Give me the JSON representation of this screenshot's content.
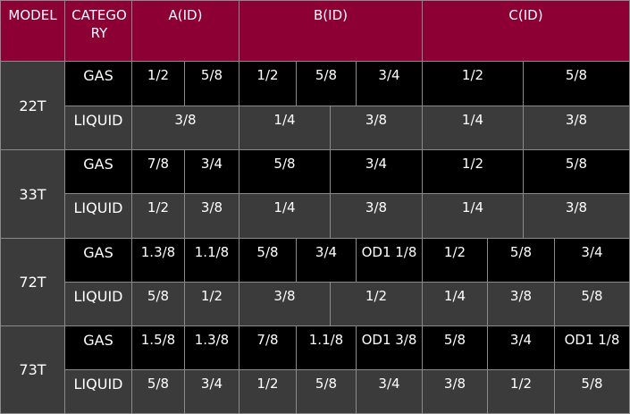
{
  "table": {
    "header": [
      "MODEL",
      "CATEGORY",
      "A(ID)",
      "B(ID)",
      "C(ID)"
    ],
    "rows": [
      {
        "model": "22T",
        "gas": {
          "label": "GAS",
          "cells": [
            "1/2",
            "5/8",
            "1/2",
            "5/8",
            "3/4",
            "1/2",
            "5/8"
          ]
        },
        "liquid": {
          "label": "LIQUID",
          "cells": [
            "3/8",
            "1/4",
            "3/8",
            "1/4",
            "3/8"
          ]
        }
      },
      {
        "model": "33T",
        "gas": {
          "label": "GAS",
          "cells": [
            "7/8",
            "3/4",
            "5/8",
            "3/4",
            "1/2",
            "5/8"
          ]
        },
        "liquid": {
          "label": "LIQUID",
          "cells": [
            "1/2",
            "3/8",
            "1/4",
            "3/8",
            "1/4",
            "3/8"
          ]
        }
      },
      {
        "model": "72T",
        "gas": {
          "label": "GAS",
          "cells": [
            "1.3/8",
            "1.1/8",
            "5/8",
            "3/4",
            "OD1 1/8",
            "1/2",
            "5/8",
            "3/4"
          ]
        },
        "liquid": {
          "label": "LIQUID",
          "cells": [
            "5/8",
            "1/2",
            "3/8",
            "1/2",
            "1/4",
            "3/8",
            "5/8"
          ]
        }
      },
      {
        "model": "73T",
        "gas": {
          "label": "GAS",
          "cells": [
            "1.5/8",
            "1.3/8",
            "7/8",
            "1.1/8",
            "OD1 3/8",
            "5/8",
            "3/4",
            "OD1 1/8"
          ]
        },
        "liquid": {
          "label": "LIQUID",
          "cells": [
            "5/8",
            "3/4",
            "1/2",
            "5/8",
            "3/4",
            "3/8",
            "1/2",
            "5/8"
          ]
        }
      }
    ]
  }
}
